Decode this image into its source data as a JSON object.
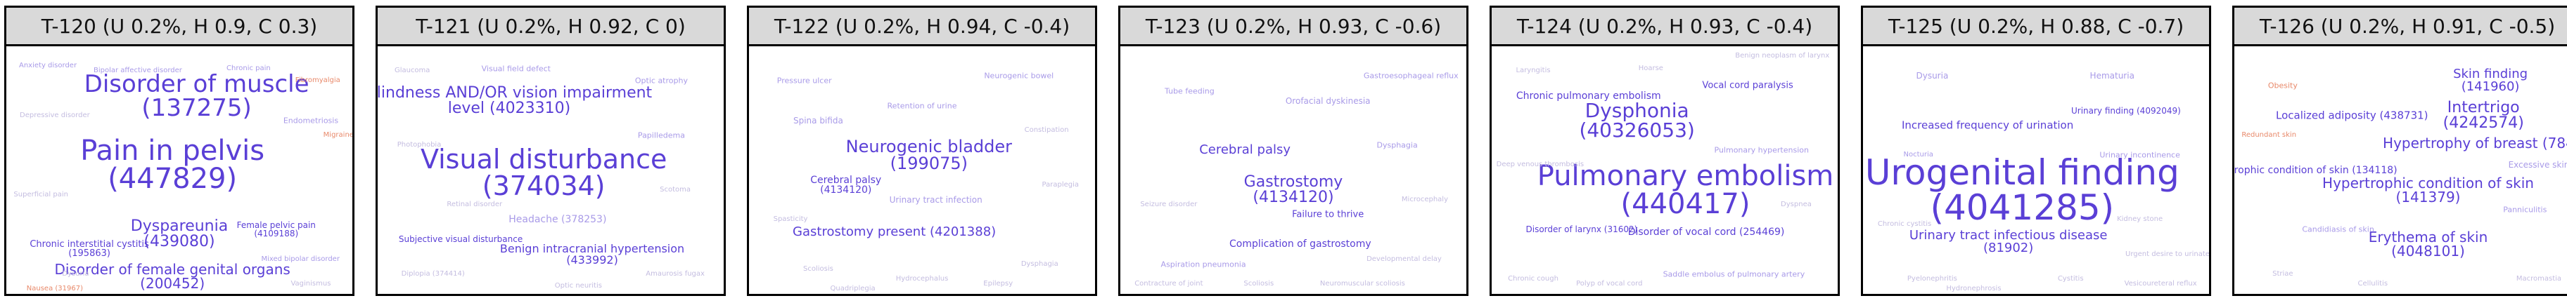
{
  "colors": {
    "primary": "#5a3fd6",
    "light": "#a99be8",
    "faint": "#c4bde0",
    "accent": "#e8896a",
    "grey": "#b9b9c9"
  },
  "panels": [
    {
      "title": "T-120 (U 0.2%, H 0.9, C 0.3)",
      "words": [
        {
          "term": "Disorder of muscle",
          "code": "(137275)",
          "size": 34,
          "color": "primary"
        },
        {
          "term": "Pain in pelvis",
          "code": "(447829)",
          "size": 40,
          "color": "primary"
        },
        {
          "term": "Dyspareunia",
          "code": "(439080)",
          "size": 22,
          "color": "primary"
        },
        {
          "term": "Chronic interstitial cystitis",
          "code": "(195863)",
          "size": 13,
          "color": "primary"
        },
        {
          "term": "Female pelvic pain",
          "code": "(4109188)",
          "size": 12,
          "color": "primary"
        },
        {
          "term": "Disorder of female genital organs",
          "code": "(200452)",
          "size": 20,
          "color": "primary"
        },
        {
          "term": "Bipolar affective disorder",
          "code": "",
          "size": 10,
          "color": "light"
        },
        {
          "term": "Anxiety disorder",
          "code": "",
          "size": 10,
          "color": "light"
        },
        {
          "term": "Chronic pain",
          "code": "",
          "size": 10,
          "color": "light"
        },
        {
          "term": "Endometriosis",
          "code": "",
          "size": 11,
          "color": "light"
        },
        {
          "term": "Mixed bipolar disorder",
          "code": "",
          "size": 10,
          "color": "light"
        },
        {
          "term": "Migraine",
          "code": "",
          "size": 10,
          "color": "accent"
        },
        {
          "term": "Fibromyalgia",
          "code": "",
          "size": 10,
          "color": "accent"
        },
        {
          "term": "Depressive disorder",
          "code": "",
          "size": 10,
          "color": "faint"
        },
        {
          "term": "Superficial pain",
          "code": "",
          "size": 10,
          "color": "faint"
        },
        {
          "term": "Dysuria",
          "code": "",
          "size": 10,
          "color": "faint"
        },
        {
          "term": "Nausea (31967)",
          "code": "",
          "size": 10,
          "color": "accent"
        },
        {
          "term": "Vaginismus",
          "code": "",
          "size": 10,
          "color": "faint"
        }
      ]
    },
    {
      "title": "T-121 (U 0.2%, H 0.92, C 0)",
      "words": [
        {
          "term": "Blindness AND/OR vision impairment",
          "code": "level (4023310)",
          "size": 22,
          "color": "primary"
        },
        {
          "term": "Visual disturbance",
          "code": "(374034)",
          "size": 38,
          "color": "primary"
        },
        {
          "term": "Headache (378253)",
          "code": "",
          "size": 14,
          "color": "light"
        },
        {
          "term": "Benign intracranial hypertension",
          "code": "(433992)",
          "size": 16,
          "color": "primary"
        },
        {
          "term": "Subjective visual disturbance",
          "code": "",
          "size": 12,
          "color": "primary"
        },
        {
          "term": "Optic atrophy",
          "code": "",
          "size": 11,
          "color": "light"
        },
        {
          "term": "Papilledema",
          "code": "",
          "size": 11,
          "color": "light"
        },
        {
          "term": "Visual field defect",
          "code": "",
          "size": 11,
          "color": "light"
        },
        {
          "term": "Glaucoma",
          "code": "",
          "size": 10,
          "color": "faint"
        },
        {
          "term": "Diplopia (374414)",
          "code": "",
          "size": 10,
          "color": "faint"
        },
        {
          "term": "Amaurosis fugax",
          "code": "",
          "size": 10,
          "color": "faint"
        },
        {
          "term": "Photophobia",
          "code": "",
          "size": 10,
          "color": "faint"
        },
        {
          "term": "Scotoma",
          "code": "",
          "size": 10,
          "color": "faint"
        },
        {
          "term": "Optic neuritis",
          "code": "",
          "size": 10,
          "color": "faint"
        },
        {
          "term": "Retinal disorder",
          "code": "",
          "size": 10,
          "color": "faint"
        }
      ]
    },
    {
      "title": "T-122 (U 0.2%, H 0.94, C -0.4)",
      "words": [
        {
          "term": "Neurogenic bladder",
          "code": "(199075)",
          "size": 24,
          "color": "primary"
        },
        {
          "term": "Gastrostomy present (4201388)",
          "code": "",
          "size": 18,
          "color": "primary"
        },
        {
          "term": "Cerebral palsy",
          "code": "(4134120)",
          "size": 14,
          "color": "primary"
        },
        {
          "term": "Urinary tract infection",
          "code": "",
          "size": 12,
          "color": "light"
        },
        {
          "term": "Spina bifida",
          "code": "",
          "size": 12,
          "color": "light"
        },
        {
          "term": "Retention of urine",
          "code": "",
          "size": 11,
          "color": "light"
        },
        {
          "term": "Neurogenic bowel",
          "code": "",
          "size": 11,
          "color": "light"
        },
        {
          "term": "Pressure ulcer",
          "code": "",
          "size": 11,
          "color": "light"
        },
        {
          "term": "Constipation",
          "code": "",
          "size": 10,
          "color": "faint"
        },
        {
          "term": "Dysphagia",
          "code": "",
          "size": 10,
          "color": "faint"
        },
        {
          "term": "Scoliosis",
          "code": "",
          "size": 10,
          "color": "faint"
        },
        {
          "term": "Paraplegia",
          "code": "",
          "size": 10,
          "color": "faint"
        },
        {
          "term": "Hydrocephalus",
          "code": "",
          "size": 10,
          "color": "faint"
        },
        {
          "term": "Spasticity",
          "code": "",
          "size": 10,
          "color": "faint"
        },
        {
          "term": "Epilepsy",
          "code": "",
          "size": 10,
          "color": "faint"
        },
        {
          "term": "Quadriplegia",
          "code": "",
          "size": 10,
          "color": "faint"
        }
      ]
    },
    {
      "title": "T-123 (U 0.2%, H 0.93, C -0.6)",
      "words": [
        {
          "term": "Gastrostomy",
          "code": "(4134120)",
          "size": 22,
          "color": "primary"
        },
        {
          "term": "Cerebral palsy",
          "code": "",
          "size": 18,
          "color": "primary"
        },
        {
          "term": "Complication of gastrostomy",
          "code": "",
          "size": 14,
          "color": "primary"
        },
        {
          "term": "Failure to thrive",
          "code": "",
          "size": 13,
          "color": "primary"
        },
        {
          "term": "Orofacial dyskinesia",
          "code": "",
          "size": 12,
          "color": "light"
        },
        {
          "term": "Tube feeding",
          "code": "",
          "size": 11,
          "color": "light"
        },
        {
          "term": "Dysphagia",
          "code": "",
          "size": 11,
          "color": "light"
        },
        {
          "term": "Aspiration pneumonia",
          "code": "",
          "size": 11,
          "color": "light"
        },
        {
          "term": "Gastroesophageal reflux",
          "code": "",
          "size": 11,
          "color": "light"
        },
        {
          "term": "Seizure disorder",
          "code": "",
          "size": 10,
          "color": "faint"
        },
        {
          "term": "Developmental delay",
          "code": "",
          "size": 10,
          "color": "faint"
        },
        {
          "term": "Scoliosis",
          "code": "",
          "size": 10,
          "color": "faint"
        },
        {
          "term": "Microcephaly",
          "code": "",
          "size": 10,
          "color": "faint"
        },
        {
          "term": "Contracture of joint",
          "code": "",
          "size": 10,
          "color": "faint"
        },
        {
          "term": "Neuromuscular scoliosis",
          "code": "",
          "size": 10,
          "color": "faint"
        }
      ]
    },
    {
      "title": "T-124 (U 0.2%, H 0.93, C -0.4)",
      "words": [
        {
          "term": "Dysphonia",
          "code": "(40326053)",
          "size": 28,
          "color": "primary"
        },
        {
          "term": "Pulmonary embolism",
          "code": "(440417)",
          "size": 40,
          "color": "primary"
        },
        {
          "term": "Chronic pulmonary embolism",
          "code": "",
          "size": 14,
          "color": "primary"
        },
        {
          "term": "Vocal cord paralysis",
          "code": "",
          "size": 13,
          "color": "primary"
        },
        {
          "term": "Disorder of vocal cord (254469)",
          "code": "",
          "size": 14,
          "color": "primary"
        },
        {
          "term": "Disorder of larynx (31602)",
          "code": "",
          "size": 12,
          "color": "primary"
        },
        {
          "term": "Pulmonary hypertension",
          "code": "",
          "size": 11,
          "color": "light"
        },
        {
          "term": "Saddle embolus of pulmonary artery",
          "code": "",
          "size": 11,
          "color": "light"
        },
        {
          "term": "Laryngitis",
          "code": "",
          "size": 10,
          "color": "faint"
        },
        {
          "term": "Hoarse",
          "code": "",
          "size": 10,
          "color": "faint"
        },
        {
          "term": "Deep venous thrombosis",
          "code": "",
          "size": 10,
          "color": "faint"
        },
        {
          "term": "Benign neoplasm of larynx",
          "code": "",
          "size": 10,
          "color": "faint"
        },
        {
          "term": "Polyp of vocal cord",
          "code": "",
          "size": 10,
          "color": "faint"
        },
        {
          "term": "Dyspnea",
          "code": "",
          "size": 10,
          "color": "faint"
        },
        {
          "term": "Chronic cough",
          "code": "",
          "size": 10,
          "color": "faint"
        }
      ]
    },
    {
      "title": "T-125 (U 0.2%, H 0.88, C -0.7)",
      "words": [
        {
          "term": "Urogenital finding",
          "code": "(4041285)",
          "size": 50,
          "color": "primary"
        },
        {
          "term": "Increased frequency of urination",
          "code": "",
          "size": 15,
          "color": "primary"
        },
        {
          "term": "Urinary tract infectious disease",
          "code": "(81902)",
          "size": 18,
          "color": "primary"
        },
        {
          "term": "Urinary finding (4092049)",
          "code": "",
          "size": 12,
          "color": "primary"
        },
        {
          "term": "Dysuria",
          "code": "",
          "size": 12,
          "color": "light"
        },
        {
          "term": "Hematuria",
          "code": "",
          "size": 12,
          "color": "light"
        },
        {
          "term": "Urinary incontinence",
          "code": "",
          "size": 11,
          "color": "light"
        },
        {
          "term": "Nocturia",
          "code": "",
          "size": 10,
          "color": "light"
        },
        {
          "term": "Cystitis",
          "code": "",
          "size": 10,
          "color": "faint"
        },
        {
          "term": "Pyelonephritis",
          "code": "",
          "size": 10,
          "color": "faint"
        },
        {
          "term": "Urgent desire to urinate",
          "code": "",
          "size": 10,
          "color": "faint"
        },
        {
          "term": "Kidney stone",
          "code": "",
          "size": 10,
          "color": "faint"
        },
        {
          "term": "Chronic cystitis",
          "code": "",
          "size": 10,
          "color": "faint"
        },
        {
          "term": "Hydronephrosis",
          "code": "",
          "size": 10,
          "color": "faint"
        },
        {
          "term": "Vesicoureteral reflux",
          "code": "",
          "size": 10,
          "color": "faint"
        }
      ]
    },
    {
      "title": "T-126 (U 0.2%, H 0.91, C -0.5)",
      "words": [
        {
          "term": "Intertrigo",
          "code": "(4242574)",
          "size": 22,
          "color": "primary"
        },
        {
          "term": "Localized adiposity (438731)",
          "code": "",
          "size": 15,
          "color": "primary"
        },
        {
          "term": "Skin finding",
          "code": "(141960)",
          "size": 18,
          "color": "primary"
        },
        {
          "term": "Hypertrophy of breast (78474)",
          "code": "",
          "size": 20,
          "color": "primary"
        },
        {
          "term": "Atrophic condition of skin (134118)",
          "code": "",
          "size": 14,
          "color": "primary"
        },
        {
          "term": "Hypertrophic condition of skin",
          "code": "(141379)",
          "size": 20,
          "color": "primary"
        },
        {
          "term": "Erythema of skin",
          "code": "(4048101)",
          "size": 20,
          "color": "primary"
        },
        {
          "term": "Excessive skin",
          "code": "",
          "size": 12,
          "color": "light"
        },
        {
          "term": "Panniculitis",
          "code": "",
          "size": 11,
          "color": "light"
        },
        {
          "term": "Candidiasis of skin",
          "code": "",
          "size": 11,
          "color": "light"
        },
        {
          "term": "Obesity",
          "code": "",
          "size": 11,
          "color": "accent"
        },
        {
          "term": "Redundant skin",
          "code": "",
          "size": 10,
          "color": "accent"
        },
        {
          "term": "Macromastia",
          "code": "",
          "size": 10,
          "color": "faint"
        },
        {
          "term": "Striae",
          "code": "",
          "size": 10,
          "color": "faint"
        },
        {
          "term": "Cellulitis",
          "code": "",
          "size": 10,
          "color": "faint"
        }
      ]
    }
  ]
}
